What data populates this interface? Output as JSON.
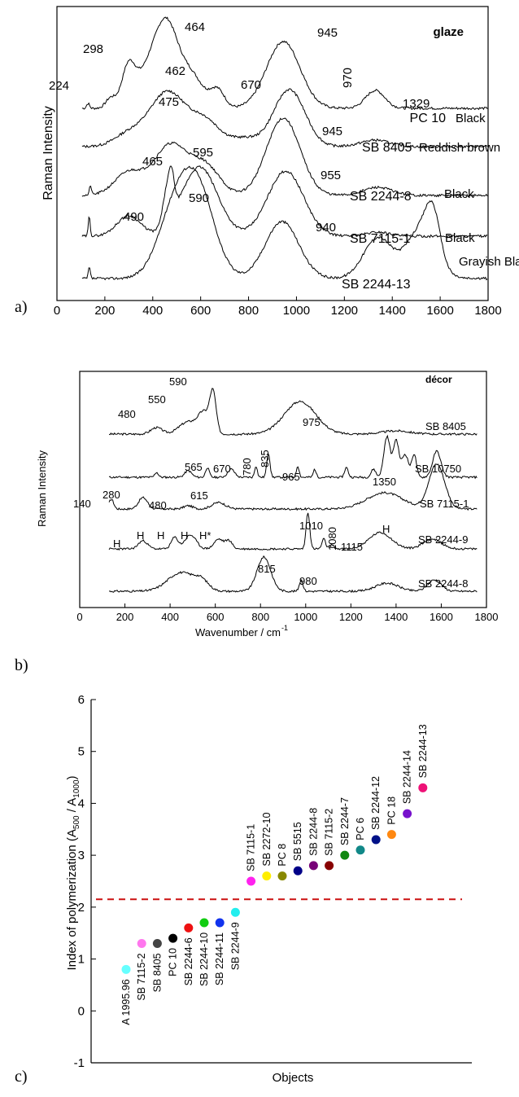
{
  "chart_data": [
    {
      "panel": "a)",
      "type": "line",
      "title": "glaze",
      "ylabel": "Raman Intensity",
      "xlim": [
        0,
        1800
      ],
      "xticks": [
        0,
        200,
        400,
        600,
        800,
        1000,
        1200,
        1400,
        1600,
        1800
      ],
      "series": [
        {
          "name": "PC 10",
          "color_label": "Black",
          "x": [
            100,
            140,
            200,
            240,
            270,
            298,
            340,
            400,
            464,
            500,
            560,
            620,
            670,
            700,
            760,
            800,
            860,
            900,
            945,
            980,
            1040,
            1100,
            1160,
            1200,
            1260,
            1300,
            1329,
            1360,
            1420,
            1500,
            1600,
            1800
          ]
        },
        {
          "name": "SB 8405",
          "color_label": "Reddish brown"
        },
        {
          "name": "SB 2244-8",
          "color_label": "Black"
        },
        {
          "name": "SB 7115-1",
          "color_label": "Black"
        },
        {
          "name": "SB 2244-13",
          "color_label": "Grayish Black"
        }
      ],
      "annotations": [
        "224",
        "298",
        "464",
        "670",
        "945",
        "462",
        "970",
        "475",
        "945",
        "465",
        "595",
        "955",
        "590",
        "490",
        "940",
        "1329"
      ]
    },
    {
      "panel": "b)",
      "type": "line",
      "title": "décor",
      "ylabel": "Raman Intensity",
      "xlabel": "Wavenumber / cm",
      "xlabel_sup": "-1",
      "xlim": [
        0,
        1800
      ],
      "xticks": [
        0,
        200,
        400,
        600,
        800,
        1000,
        1200,
        1400,
        1600,
        1800
      ],
      "series": [
        {
          "name": "SB 8405"
        },
        {
          "name": "SB 10750"
        },
        {
          "name": "SB 7115-1"
        },
        {
          "name": "SB 2244-9"
        },
        {
          "name": "SB 2244-8"
        }
      ],
      "annotations": [
        "590",
        "550",
        "480",
        "975",
        "565",
        "670",
        "780",
        "835",
        "965",
        "140",
        "280",
        "480",
        "615",
        "1350",
        "H",
        "H",
        "H",
        "H",
        "H*",
        "1010",
        "1080",
        "1115",
        "H",
        "815",
        "980"
      ]
    },
    {
      "panel": "c)",
      "type": "scatter",
      "xlabel": "Objects",
      "ylabel": "Index of polymerization (A",
      "ylabel_sub1": "500",
      "ylabel_mid": " / A",
      "ylabel_sub2": "1000",
      "ylabel_end": ")",
      "ylim": [
        -1,
        6
      ],
      "yticks": [
        -1,
        0,
        1,
        2,
        3,
        4,
        5,
        6
      ],
      "threshold": 2.15,
      "threshold_color": "#cc1111",
      "points": [
        {
          "label": "A 1995.96",
          "value": 0.8,
          "color": "#66ffff"
        },
        {
          "label": "SB 7115-2",
          "value": 1.3,
          "color": "#ff77ee"
        },
        {
          "label": "SB 8405",
          "value": 1.3,
          "color": "#444444"
        },
        {
          "label": "PC 10",
          "value": 1.4,
          "color": "#000000"
        },
        {
          "label": "SB 2244-6",
          "value": 1.6,
          "color": "#ee1111"
        },
        {
          "label": "SB 2244-10",
          "value": 1.7,
          "color": "#11cc11"
        },
        {
          "label": "SB 2244-11",
          "value": 1.7,
          "color": "#1133ee"
        },
        {
          "label": "SB 2244-9",
          "value": 1.9,
          "color": "#22eeee"
        },
        {
          "label": "SB 7115-1",
          "value": 2.5,
          "color": "#ff22ee"
        },
        {
          "label": "SB 2272-10",
          "value": 2.6,
          "color": "#ffee00"
        },
        {
          "label": "PC 8",
          "value": 2.6,
          "color": "#888800"
        },
        {
          "label": "SB 5515",
          "value": 2.7,
          "color": "#000088"
        },
        {
          "label": "SB 2244-8",
          "value": 2.8,
          "color": "#770077"
        },
        {
          "label": "SB 7115-2",
          "value": 2.8,
          "color": "#880000"
        },
        {
          "label": "SB 2244-7",
          "value": 3.0,
          "color": "#118811"
        },
        {
          "label": "PC 6",
          "value": 3.1,
          "color": "#118888"
        },
        {
          "label": "SB 2244-12",
          "value": 3.3,
          "color": "#001188"
        },
        {
          "label": "PC 18",
          "value": 3.4,
          "color": "#ff8811"
        },
        {
          "label": "SB 2244-14",
          "value": 3.8,
          "color": "#7711cc"
        },
        {
          "label": "SB 2244-13",
          "value": 4.3,
          "color": "#ee1177"
        }
      ]
    }
  ]
}
